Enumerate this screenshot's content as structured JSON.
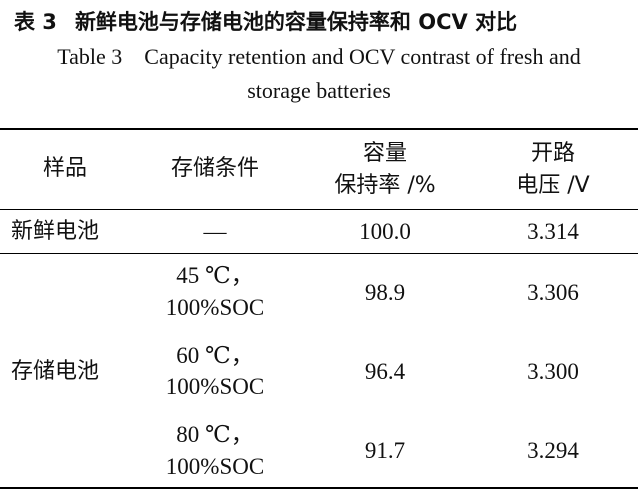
{
  "table_title_cn": {
    "label": "表 3",
    "text": "新鲜电池与存储电池的容量保持率和 OCV 对比"
  },
  "table_caption_en": {
    "line1": "Table 3    Capacity retention and OCV contrast of fresh and",
    "line2": "storage batteries"
  },
  "headers": {
    "sample": "样品",
    "storage_condition": "存储条件",
    "capacity_retention_line1": "容量",
    "capacity_retention_line2": "保持率 /%",
    "ocv_line1": "开路",
    "ocv_line2": "电压 /V"
  },
  "rows": [
    {
      "sample": "新鲜电池",
      "condition_line1": "—",
      "condition_line2": "",
      "retention": "100.0",
      "ocv": "3.314"
    },
    {
      "sample": "",
      "condition_line1": "45 ℃，",
      "condition_line2": "100%SOC",
      "retention": "98.9",
      "ocv": "3.306"
    },
    {
      "sample": "存储电池",
      "condition_line1": "60 ℃，",
      "condition_line2": "100%SOC",
      "retention": "96.4",
      "ocv": "3.300"
    },
    {
      "sample": "",
      "condition_line1": "80 ℃，",
      "condition_line2": "100%SOC",
      "retention": "91.7",
      "ocv": "3.294"
    }
  ]
}
